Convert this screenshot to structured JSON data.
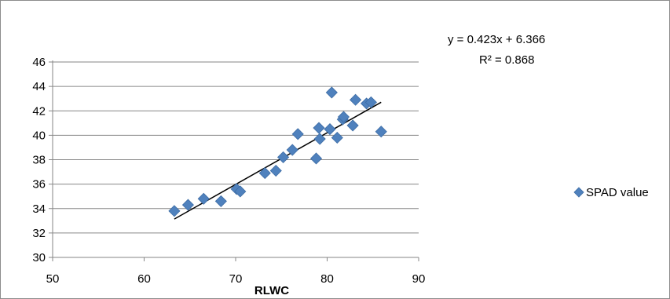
{
  "chart_data": {
    "type": "scatter",
    "xlabel": "RLWC",
    "ylabel": "",
    "xlim": [
      50,
      90
    ],
    "ylim": [
      30,
      46
    ],
    "xticks": [
      50,
      60,
      70,
      80,
      90
    ],
    "yticks": [
      30,
      32,
      34,
      36,
      38,
      40,
      42,
      44,
      46
    ],
    "grid": "horizontal major gridlines",
    "legend_position": "right",
    "series": [
      {
        "name": "SPAD value",
        "color": "#4f81bd",
        "marker": "diamond",
        "x": [
          63.3,
          64.8,
          66.5,
          68.4,
          70.1,
          70.5,
          73.2,
          74.4,
          75.2,
          76.2,
          76.8,
          78.8,
          79.1,
          79.2,
          80.3,
          80.5,
          81.1,
          81.7,
          81.8,
          82.8,
          83.1,
          84.3,
          84.8,
          85.9
        ],
        "y": [
          33.8,
          34.3,
          34.8,
          34.6,
          35.6,
          35.4,
          36.9,
          37.1,
          38.2,
          38.8,
          40.1,
          38.1,
          40.6,
          39.7,
          40.5,
          43.5,
          39.8,
          41.3,
          41.5,
          40.8,
          42.9,
          42.6,
          42.7,
          40.3
        ]
      }
    ],
    "trendline": {
      "type": "linear",
      "slope": 0.423,
      "intercept": 6.366,
      "x_range": [
        63.3,
        85.9
      ],
      "equation_text": "y = 0.423x + 6.366",
      "r2_text": "R² = 0.868",
      "color": "#000000"
    }
  }
}
